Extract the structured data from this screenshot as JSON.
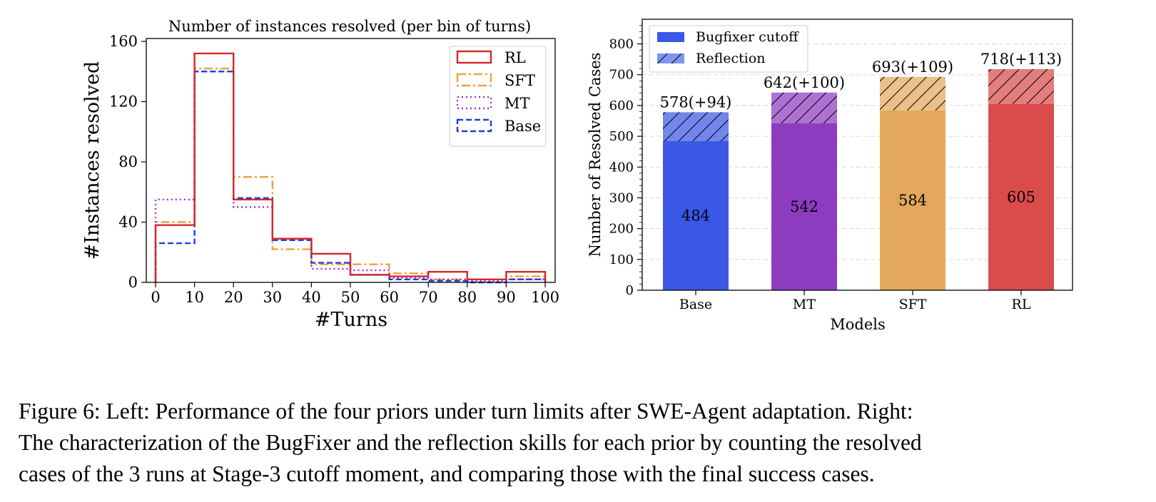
{
  "chart_data": [
    {
      "type": "step-histogram",
      "title": "Number of instances resolved (per bin of turns)",
      "xlabel": "#Turns",
      "ylabel": "#Instances resolved",
      "xlim": [
        0,
        100
      ],
      "ylim": [
        0,
        160
      ],
      "xticks": [
        "0",
        "10",
        "20",
        "30",
        "40",
        "50",
        "60",
        "70",
        "80",
        "90",
        "100"
      ],
      "yticks": [
        "0",
        "40",
        "80",
        "120",
        "160"
      ],
      "bin_edges": [
        0,
        10,
        20,
        30,
        40,
        50,
        60,
        70,
        80,
        90,
        100
      ],
      "legend_position": "top-right",
      "series": [
        {
          "name": "RL",
          "color": "#d62728",
          "style": "solid",
          "values": [
            38,
            152,
            55,
            29,
            19,
            5,
            4,
            7,
            2,
            7
          ]
        },
        {
          "name": "SFT",
          "color": "#f0a040",
          "style": "dashdot",
          "values": [
            40,
            142,
            70,
            22,
            12,
            12,
            6,
            2,
            2,
            4
          ]
        },
        {
          "name": "MT",
          "color": "#9b30d9",
          "style": "dotted",
          "values": [
            55,
            140,
            50,
            28,
            9,
            8,
            3,
            2,
            1,
            2
          ]
        },
        {
          "name": "Base",
          "color": "#1f3fe0",
          "style": "dashed",
          "values": [
            26,
            140,
            56,
            28,
            13,
            5,
            2,
            1,
            0,
            2
          ]
        }
      ]
    },
    {
      "type": "stacked-bar",
      "xlabel": "Models",
      "ylabel": "Number of Resolved Cases",
      "ylim": [
        0,
        880
      ],
      "yticks": [
        "0",
        "100",
        "200",
        "300",
        "400",
        "500",
        "600",
        "700",
        "800"
      ],
      "categories": [
        "Base",
        "MT",
        "SFT",
        "RL"
      ],
      "colors": [
        "#3b57e8",
        "#8d3cc0",
        "#e4a85c",
        "#da4b4b"
      ],
      "legend_position": "top-left",
      "series": [
        {
          "name": "Bugfixer cutoff",
          "values": [
            484,
            542,
            584,
            605
          ]
        },
        {
          "name": "Reflection",
          "values": [
            94,
            100,
            109,
            113
          ]
        }
      ],
      "inner_labels": [
        "484",
        "542",
        "584",
        "605"
      ],
      "top_labels": [
        "578(+94)",
        "642(+100)",
        "693(+109)",
        "718(+113)"
      ]
    }
  ],
  "caption": {
    "line1": "Figure 6: Left: Performance of the four priors under turn limits after SWE-Agent adaptation. Right:",
    "line2": "The characterization of the BugFixer and the reflection skills for each prior by counting the resolved",
    "line3": "cases of the 3 runs at Stage-3 cutoff moment, and comparing those with the final success cases."
  }
}
